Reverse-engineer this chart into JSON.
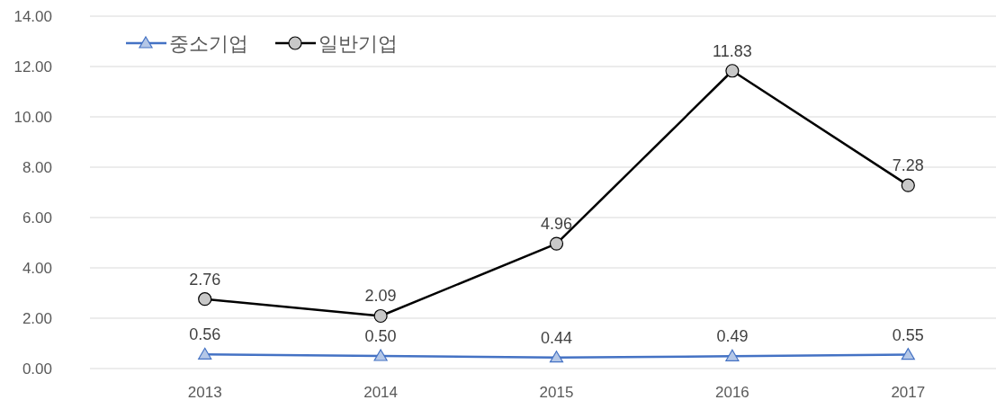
{
  "chart_data": {
    "type": "line",
    "categories": [
      "2013",
      "2014",
      "2015",
      "2016",
      "2017"
    ],
    "series": [
      {
        "name": "중소기업",
        "color": "#4472c4",
        "marker": "triangle",
        "values": [
          0.56,
          0.5,
          0.44,
          0.49,
          0.55
        ],
        "value_labels": [
          "0.56",
          "0.50",
          "0.44",
          "0.49",
          "0.55"
        ]
      },
      {
        "name": "일반기업",
        "color": "#000000",
        "marker": "circle",
        "values": [
          2.76,
          2.09,
          4.96,
          11.83,
          7.28
        ],
        "value_labels": [
          "2.76",
          "2.09",
          "4.96",
          "11.83",
          "7.28"
        ]
      }
    ],
    "ylim": [
      0,
      14
    ],
    "yticks": [
      {
        "value": 0,
        "label": "0.00"
      },
      {
        "value": 2,
        "label": "2.00"
      },
      {
        "value": 4,
        "label": "4.00"
      },
      {
        "value": 6,
        "label": "6.00"
      },
      {
        "value": 8,
        "label": "8.00"
      },
      {
        "value": 10,
        "label": "10.00"
      },
      {
        "value": 12,
        "label": "12.00"
      },
      {
        "value": 14,
        "label": "14.00"
      }
    ],
    "grid": "y",
    "legend": "top left"
  }
}
